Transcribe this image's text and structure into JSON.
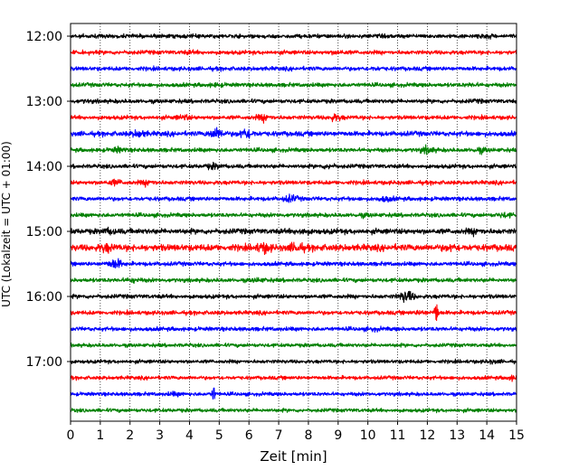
{
  "chart_data": {
    "type": "line",
    "title": "",
    "xlabel": "Zeit  [min]",
    "ylabel": "UTC (Lokalzeit = UTC + 01:00)",
    "xlim": [
      0,
      15
    ],
    "x_ticks": [
      "0",
      "1",
      "2",
      "3",
      "4",
      "5",
      "6",
      "7",
      "8",
      "9",
      "10",
      "11",
      "12",
      "13",
      "14",
      "15"
    ],
    "y_ticks": [
      "12:00",
      "13:00",
      "14:00",
      "15:00",
      "16:00",
      "17:00"
    ],
    "grid": "vertical-dotted",
    "trace_colors": [
      "#000000",
      "#ff0000",
      "#0000ff",
      "#008000"
    ],
    "traces": [
      {
        "start": "12:00",
        "amplitude": 1.0,
        "events": [
          {
            "t": 13.9,
            "a": 1.6
          }
        ]
      },
      {
        "start": "12:15",
        "amplitude": 1.0,
        "events": [
          {
            "t": 4.0,
            "a": 1.3
          },
          {
            "t": 9.0,
            "a": 1.5
          }
        ]
      },
      {
        "start": "12:30",
        "amplitude": 1.0,
        "events": [
          {
            "t": 10.2,
            "a": 1.3
          }
        ]
      },
      {
        "start": "12:45",
        "amplitude": 1.0,
        "events": [
          {
            "t": 4.9,
            "a": 1.4
          },
          {
            "t": 13.5,
            "a": 1.3
          }
        ]
      },
      {
        "start": "13:00",
        "amplitude": 1.0,
        "events": [
          {
            "t": 0.5,
            "a": 1.2
          },
          {
            "t": 13.7,
            "a": 1.2
          }
        ]
      },
      {
        "start": "13:15",
        "amplitude": 1.0,
        "events": [
          {
            "t": 3.8,
            "a": 1.7
          },
          {
            "t": 6.5,
            "a": 2.2
          },
          {
            "t": 8.9,
            "a": 2.2
          }
        ]
      },
      {
        "start": "13:30",
        "amplitude": 1.2,
        "events": [
          {
            "t": 2.3,
            "a": 2.2
          },
          {
            "t": 4.9,
            "a": 3.2
          },
          {
            "t": 5.9,
            "a": 3.0
          }
        ]
      },
      {
        "start": "13:45",
        "amplitude": 1.0,
        "events": [
          {
            "t": 1.6,
            "a": 1.8
          },
          {
            "t": 12.0,
            "a": 2.2
          },
          {
            "t": 13.8,
            "a": 1.8
          }
        ]
      },
      {
        "start": "14:00",
        "amplitude": 1.0,
        "events": [
          {
            "t": 4.8,
            "a": 1.9
          },
          {
            "t": 8.7,
            "a": 1.6
          }
        ]
      },
      {
        "start": "14:15",
        "amplitude": 1.0,
        "events": [
          {
            "t": 1.5,
            "a": 1.9
          },
          {
            "t": 2.6,
            "a": 1.9
          }
        ]
      },
      {
        "start": "14:30",
        "amplitude": 1.0,
        "events": [
          {
            "t": 7.4,
            "a": 2.2
          },
          {
            "t": 10.6,
            "a": 1.8
          }
        ]
      },
      {
        "start": "14:45",
        "amplitude": 1.0,
        "events": [
          {
            "t": 9.9,
            "a": 1.4
          },
          {
            "t": 14.6,
            "a": 1.7
          }
        ]
      },
      {
        "start": "15:00",
        "amplitude": 1.3,
        "events": [
          {
            "t": 1.3,
            "a": 1.8
          },
          {
            "t": 7.8,
            "a": 1.8
          },
          {
            "t": 13.6,
            "a": 1.8
          }
        ]
      },
      {
        "start": "15:15",
        "amplitude": 1.6,
        "events": [
          {
            "t": 1.2,
            "a": 2.3
          },
          {
            "t": 6.5,
            "a": 2.6
          },
          {
            "t": 7.6,
            "a": 2.5
          },
          {
            "t": 12.8,
            "a": 1.8
          }
        ]
      },
      {
        "start": "15:30",
        "amplitude": 1.0,
        "events": [
          {
            "t": 1.5,
            "a": 3.0
          }
        ]
      },
      {
        "start": "15:45",
        "amplitude": 1.0,
        "events": [
          {
            "t": 2.1,
            "a": 1.6
          },
          {
            "t": 6.3,
            "a": 1.5
          }
        ]
      },
      {
        "start": "16:00",
        "amplitude": 1.0,
        "events": [
          {
            "t": 11.3,
            "a": 3.5
          }
        ]
      },
      {
        "start": "16:15",
        "amplitude": 1.0,
        "events": [
          {
            "t": 12.3,
            "a": 7.5
          },
          {
            "t": 11.8,
            "a": 1.5
          }
        ]
      },
      {
        "start": "16:30",
        "amplitude": 1.0,
        "events": [
          {
            "t": 10.2,
            "a": 1.4
          }
        ]
      },
      {
        "start": "16:45",
        "amplitude": 0.9,
        "events": []
      },
      {
        "start": "17:00",
        "amplitude": 0.9,
        "events": [
          {
            "t": 14.2,
            "a": 1.4
          }
        ]
      },
      {
        "start": "17:15",
        "amplitude": 0.9,
        "events": [
          {
            "t": 14.9,
            "a": 1.8
          }
        ]
      },
      {
        "start": "17:30",
        "amplitude": 0.9,
        "events": [
          {
            "t": 4.8,
            "a": 4.5
          },
          {
            "t": 3.5,
            "a": 1.5
          }
        ]
      },
      {
        "start": "17:45",
        "amplitude": 0.9,
        "events": []
      }
    ]
  }
}
